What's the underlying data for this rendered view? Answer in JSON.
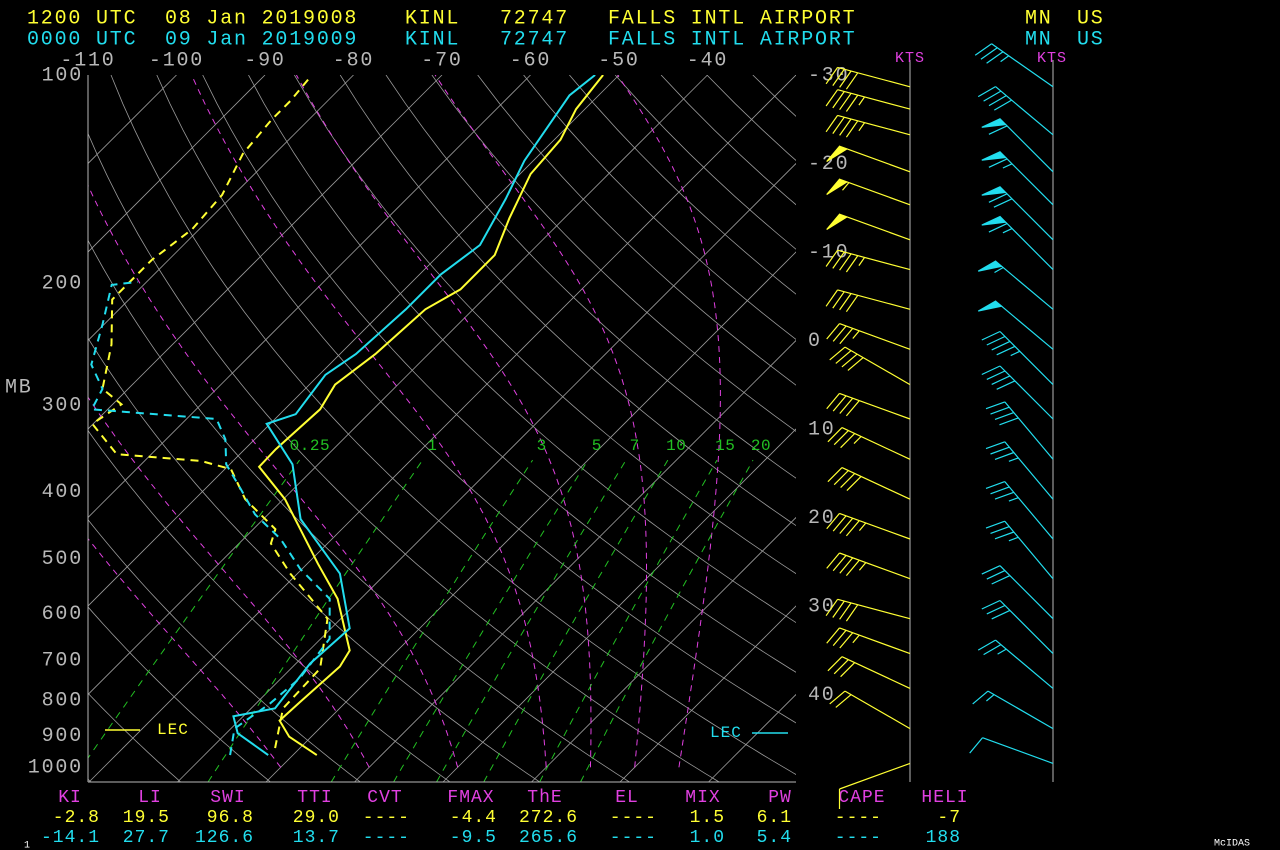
{
  "chart_data": {
    "type": "skew-t",
    "ylabel": "MB",
    "ylim": [
      1050,
      100
    ],
    "yticks": [
      100,
      200,
      300,
      400,
      500,
      600,
      700,
      800,
      900,
      1000
    ],
    "xlim": [
      -110,
      -30
    ],
    "xticks": [
      -110,
      -100,
      -90,
      -80,
      -70,
      -60,
      -50,
      -40,
      -30,
      -20,
      -10,
      0,
      10,
      20,
      30,
      40
    ],
    "mixing_ratios": [
      0.25,
      1,
      3,
      5,
      7,
      10,
      15,
      20
    ],
    "wind_unit": "KTS",
    "index_names": [
      "KI",
      "LI",
      "SWI",
      "TTI",
      "CVT",
      "FMAX",
      "ThE",
      "EL",
      "MIX",
      "PW",
      "CAPE",
      "HELI"
    ],
    "credit": "McIDAS",
    "frame": "1",
    "soundings": [
      {
        "color": "#ffff33",
        "header": {
          "time": "1200 UTC",
          "date": "08 Jan 2019008",
          "station": "KINL",
          "id": "72747",
          "name": "FALLS INTL AIRPORT",
          "state": "MN",
          "country": "US"
        },
        "lec_label": "LEC",
        "indices": [
          "-2.8",
          "19.5",
          "96.8",
          "29.0",
          "----",
          "-4.4",
          "272.6",
          "----",
          "1.5",
          "6.1",
          "----",
          "-7"
        ],
        "pressure": [
          960,
          903,
          856,
          806,
          715,
          678,
          571,
          508,
          410,
          368,
          347,
          304,
          280,
          253,
          218,
          204,
          182,
          161,
          139,
          124,
          112,
          100
        ],
        "temperature": [
          -7.3,
          -12.5,
          -15.4,
          -15.2,
          -14.7,
          -15.4,
          -22.6,
          -28.8,
          -39.8,
          -46.4,
          -46.5,
          -46,
          -47.1,
          -46,
          -45.4,
          -43.7,
          -43.7,
          -46.2,
          -48.8,
          -49.3,
          -51,
          -51.8
        ],
        "dewpoint_pressure": [
          938,
          822,
          720,
          610,
          525,
          475,
          453,
          410,
          371,
          361,
          353,
          319,
          299,
          284,
          245,
          211,
          185,
          167,
          149,
          130,
          116,
          109,
          100
        ],
        "dewpoint": [
          -12.8,
          -16.4,
          -16.7,
          -21.5,
          -30.8,
          -36.4,
          -37.5,
          -44.3,
          -49.3,
          -53.6,
          -63.9,
          -70.1,
          -69,
          -72.9,
          -76.9,
          -81.9,
          -81.9,
          -80.8,
          -81.3,
          -83.6,
          -84.2,
          -84.2,
          -84.7
        ],
        "wind_pressure": [
          104,
          112,
          122,
          138,
          154,
          173,
          191,
          218,
          249,
          280,
          314,
          359,
          410,
          468,
          534,
          610,
          685,
          769,
          879,
          987
        ],
        "wind_speed": [
          40,
          45,
          45,
          50,
          55,
          50,
          45,
          40,
          35,
          40,
          40,
          35,
          40,
          45,
          45,
          40,
          35,
          30,
          20,
          10
        ],
        "wind_direction": [
          285,
          285,
          285,
          290,
          290,
          290,
          285,
          285,
          290,
          300,
          290,
          295,
          295,
          290,
          290,
          285,
          290,
          295,
          300,
          250
        ]
      },
      {
        "color": "#22ddee",
        "header": {
          "time": "0000 UTC",
          "date": "09 Jan 2019009",
          "station": "KINL",
          "id": "72747",
          "name": "FALLS INTL AIRPORT",
          "state": "MN",
          "country": "US"
        },
        "lec_label": "LEC",
        "indices": [
          "-14.1",
          "27.7",
          "126.6",
          "13.7",
          "----",
          "-9.5",
          "265.6",
          "----",
          "1.0",
          "5.4",
          "----",
          "188"
        ],
        "pressure": [
          960,
          893,
          844,
          822,
          708,
          630,
          525,
          438,
          365,
          319,
          309,
          271,
          253,
          218,
          194,
          176,
          151,
          133,
          107,
          100
        ],
        "temperature": [
          -12.8,
          -18.7,
          -21.1,
          -17.3,
          -18.4,
          -17.9,
          -25.2,
          -35.8,
          -42.9,
          -50.4,
          -48.2,
          -49.3,
          -48.2,
          -47.6,
          -47.6,
          -46.5,
          -48.8,
          -51,
          -53.3,
          -52.7
        ],
        "dewpoint_pressure": [
          960,
          879,
          808,
          744,
          652,
          571,
          517,
          468,
          431,
          396,
          365,
          336,
          314,
          304,
          284,
          262,
          229,
          201,
          199
        ],
        "dewpoint": [
          -17.1,
          -19.6,
          -18.4,
          -17.9,
          -19,
          -23.5,
          -30.2,
          -35.8,
          -41.5,
          -46,
          -50.4,
          -53.3,
          -56.6,
          -71.8,
          -72.9,
          -76.9,
          -80.2,
          -83.6,
          -81
        ],
        "wind_pressure": [
          104,
          122,
          138,
          154,
          173,
          191,
          218,
          249,
          280,
          314,
          359,
          410,
          468,
          534,
          610,
          685,
          769,
          879,
          987
        ],
        "wind_speed": [
          35,
          40,
          60,
          65,
          70,
          65,
          55,
          50,
          45,
          40,
          40,
          35,
          35,
          35,
          30,
          30,
          25,
          15,
          10
        ],
        "wind_direction": [
          305,
          310,
          315,
          315,
          315,
          315,
          310,
          310,
          315,
          315,
          320,
          320,
          320,
          320,
          315,
          315,
          310,
          300,
          290
        ]
      }
    ]
  }
}
